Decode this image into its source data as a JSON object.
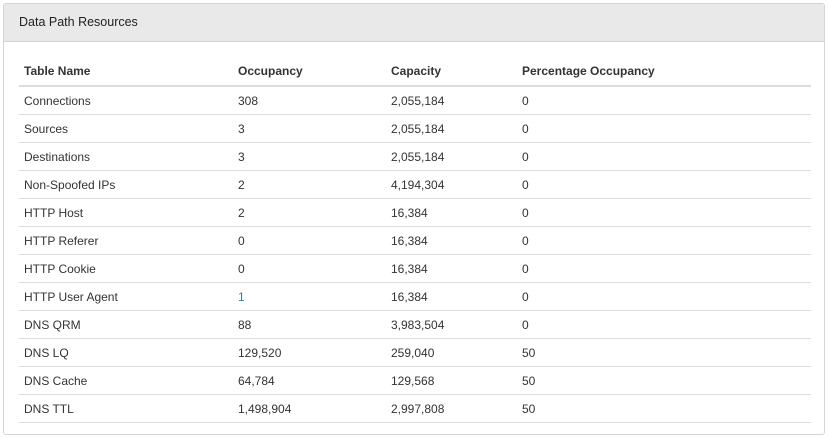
{
  "panel": {
    "title": "Data Path Resources"
  },
  "table": {
    "columns": [
      "Table Name",
      "Occupancy",
      "Capacity",
      "Percentage Occupancy"
    ],
    "rows": [
      {
        "name": "Connections",
        "occupancy": "308",
        "capacity": "2,055,184",
        "percentage": "0"
      },
      {
        "name": "Sources",
        "occupancy": "3",
        "capacity": "2,055,184",
        "percentage": "0"
      },
      {
        "name": "Destinations",
        "occupancy": "3",
        "capacity": "2,055,184",
        "percentage": "0"
      },
      {
        "name": "Non-Spoofed IPs",
        "occupancy": "2",
        "capacity": "4,194,304",
        "percentage": "0"
      },
      {
        "name": "HTTP Host",
        "occupancy": "2",
        "capacity": "16,384",
        "percentage": "0"
      },
      {
        "name": "HTTP Referer",
        "occupancy": "0",
        "capacity": "16,384",
        "percentage": "0"
      },
      {
        "name": "HTTP Cookie",
        "occupancy": "0",
        "capacity": "16,384",
        "percentage": "0"
      },
      {
        "name": "HTTP User Agent",
        "occupancy": "1",
        "capacity": "16,384",
        "percentage": "0",
        "occupancy_link": true
      },
      {
        "name": "DNS QRM",
        "occupancy": "88",
        "capacity": "3,983,504",
        "percentage": "0"
      },
      {
        "name": "DNS LQ",
        "occupancy": "129,520",
        "capacity": "259,040",
        "percentage": "50"
      },
      {
        "name": "DNS Cache",
        "occupancy": "64,784",
        "capacity": "129,568",
        "percentage": "50"
      },
      {
        "name": "DNS TTL",
        "occupancy": "1,498,904",
        "capacity": "2,997,808",
        "percentage": "50"
      }
    ]
  },
  "colors": {
    "header_bg": "#e9e9e9",
    "link": "#2a7fc1",
    "border": "#dddddd"
  }
}
